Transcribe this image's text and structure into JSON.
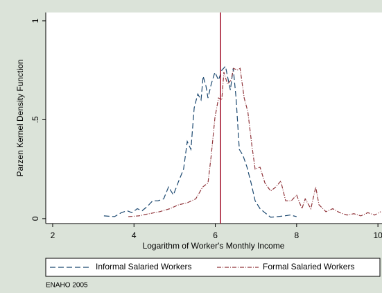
{
  "chart_data": {
    "type": "line",
    "y_label": "Parzen Kernel Density Function",
    "x_label": "Logarithm of Worker's Monthly Income",
    "note": "ENAHO 2005",
    "xlim": [
      1.83,
      10.1
    ],
    "ylim": [
      -0.025,
      1.042
    ],
    "xticks": [
      2,
      4,
      6,
      8,
      10
    ],
    "yticks": [
      0,
      {
        "value": 0.5,
        "label": ".5"
      },
      1
    ],
    "xline": 6.13,
    "xline_color": "#a3112b",
    "legend": "bottom",
    "series": [
      {
        "name": "Informal Salaried Workers",
        "color": "#1a476f",
        "dash": "8 4",
        "x": [
          3.26,
          3.52,
          3.69,
          3.83,
          3.95,
          4.08,
          4.2,
          4.32,
          4.46,
          4.59,
          4.73,
          4.85,
          4.97,
          5.1,
          5.22,
          5.31,
          5.4,
          5.48,
          5.57,
          5.65,
          5.7,
          5.77,
          5.82,
          5.9,
          5.99,
          6.08,
          6.16,
          6.25,
          6.3,
          6.37,
          6.44,
          6.51,
          6.59,
          6.68,
          6.78,
          6.88,
          6.98,
          7.1,
          7.22,
          7.36,
          7.53,
          7.7,
          7.84,
          8.0
        ],
        "values": [
          0.014,
          0.01,
          0.03,
          0.04,
          0.03,
          0.05,
          0.04,
          0.06,
          0.09,
          0.09,
          0.1,
          0.16,
          0.12,
          0.19,
          0.25,
          0.39,
          0.35,
          0.56,
          0.63,
          0.6,
          0.72,
          0.67,
          0.61,
          0.68,
          0.74,
          0.7,
          0.75,
          0.77,
          0.72,
          0.65,
          0.76,
          0.61,
          0.35,
          0.32,
          0.26,
          0.18,
          0.09,
          0.05,
          0.03,
          0.007,
          0.01,
          0.014,
          0.018,
          0.01
        ]
      },
      {
        "name": "Formal Salaried Workers",
        "color": "#90353b",
        "dash": "6 2 1 2",
        "x": [
          3.86,
          4.12,
          4.37,
          4.63,
          4.88,
          5.1,
          5.31,
          5.52,
          5.69,
          5.82,
          5.9,
          5.99,
          6.08,
          6.16,
          6.21,
          6.3,
          6.39,
          6.45,
          6.54,
          6.61,
          6.71,
          6.8,
          6.9,
          6.98,
          7.1,
          7.22,
          7.36,
          7.49,
          7.61,
          7.73,
          7.87,
          8.0,
          8.13,
          8.21,
          8.35,
          8.47,
          8.55,
          8.72,
          8.89,
          9.06,
          9.24,
          9.41,
          9.58,
          9.75,
          9.92,
          10.07
        ],
        "values": [
          0.01,
          0.014,
          0.025,
          0.035,
          0.05,
          0.07,
          0.08,
          0.1,
          0.16,
          0.18,
          0.32,
          0.51,
          0.61,
          0.6,
          0.74,
          0.68,
          0.7,
          0.76,
          0.75,
          0.76,
          0.61,
          0.54,
          0.37,
          0.25,
          0.26,
          0.18,
          0.14,
          0.16,
          0.19,
          0.09,
          0.09,
          0.12,
          0.05,
          0.1,
          0.05,
          0.16,
          0.07,
          0.035,
          0.05,
          0.03,
          0.018,
          0.025,
          0.014,
          0.03,
          0.018,
          0.035
        ]
      }
    ]
  }
}
